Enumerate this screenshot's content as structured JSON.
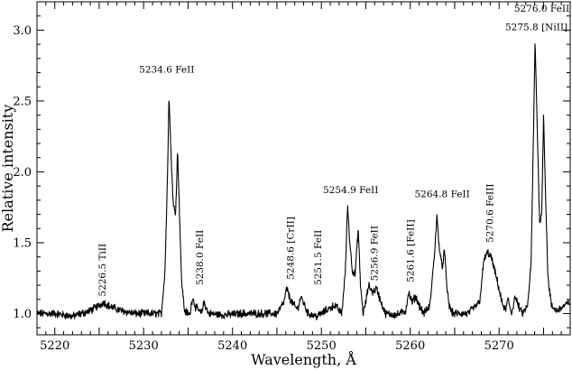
{
  "chart_data": {
    "type": "line",
    "xlabel": "Wavelength, Å",
    "ylabel": "Relative intensity",
    "xlim": [
      5218,
      5278
    ],
    "ylim": [
      0.85,
      3.2
    ],
    "grid": false,
    "legend": "none",
    "x_ticks": [
      5220,
      5230,
      5240,
      5250,
      5260,
      5270
    ],
    "y_ticks": [
      1.0,
      1.5,
      2.0,
      2.5,
      3.0
    ],
    "y_tick_labels": [
      "1.0",
      "1.5",
      "2.0",
      "2.5",
      "3.0"
    ],
    "baseline": 1.0,
    "series": [
      {
        "line_color": "#000000",
        "x": [
          5218.0,
          5220.0,
          5222.0,
          5224.0,
          5224.8,
          5225.5,
          5226.2,
          5227.5,
          5229.0,
          5231.0,
          5232.0,
          5232.4,
          5232.7,
          5232.85,
          5233.1,
          5233.35,
          5233.6,
          5233.82,
          5234.0,
          5234.25,
          5234.6,
          5235.2,
          5235.5,
          5235.8,
          5236.5,
          5236.8,
          5237.3,
          5239.0,
          5241.0,
          5243.0,
          5245.0,
          5245.8,
          5246.1,
          5246.5,
          5246.9,
          5247.3,
          5247.7,
          5248.5,
          5249.5,
          5250.5,
          5251.5,
          5252.3,
          5252.7,
          5252.95,
          5253.2,
          5253.5,
          5253.8,
          5254.15,
          5254.4,
          5254.7,
          5255.0,
          5255.3,
          5255.5,
          5255.8,
          5256.2,
          5256.6,
          5257.2,
          5258.5,
          5259.5,
          5259.8,
          5260.2,
          5260.6,
          5261.0,
          5261.5,
          5262.2,
          5262.7,
          5263.0,
          5263.3,
          5263.6,
          5263.85,
          5264.1,
          5264.4,
          5264.8,
          5265.5,
          5266.5,
          5267.8,
          5268.3,
          5268.7,
          5269.1,
          5269.5,
          5269.9,
          5270.3,
          5270.7,
          5271.0,
          5271.4,
          5271.8,
          5272.2,
          5272.6,
          5273.2,
          5273.6,
          5273.85,
          5274.05,
          5274.3,
          5274.55,
          5274.8,
          5275.0,
          5275.25,
          5275.5,
          5275.9,
          5276.5,
          5277.2,
          5278.0
        ],
        "y": [
          1.0,
          1.0,
          0.98,
          1.02,
          1.05,
          1.08,
          1.05,
          1.02,
          1.0,
          1.0,
          1.0,
          1.3,
          2.0,
          2.56,
          2.1,
          1.75,
          1.72,
          2.15,
          1.8,
          1.25,
          1.02,
          0.99,
          1.12,
          1.05,
          1.0,
          1.08,
          1.0,
          0.99,
          1.0,
          1.0,
          1.0,
          1.08,
          1.18,
          1.1,
          1.06,
          1.03,
          1.12,
          1.0,
          0.98,
          1.02,
          1.06,
          1.0,
          1.3,
          1.77,
          1.5,
          1.3,
          1.28,
          1.6,
          1.2,
          1.0,
          1.08,
          1.2,
          1.18,
          1.15,
          1.18,
          1.1,
          1.0,
          0.99,
          1.02,
          1.15,
          1.08,
          1.12,
          1.06,
          1.0,
          1.05,
          1.4,
          1.68,
          1.45,
          1.32,
          1.45,
          1.2,
          1.05,
          1.0,
          1.0,
          1.0,
          1.08,
          1.38,
          1.43,
          1.4,
          1.3,
          1.2,
          1.08,
          1.02,
          1.1,
          1.0,
          1.12,
          1.05,
          1.0,
          1.05,
          1.35,
          2.2,
          2.93,
          2.3,
          1.65,
          1.7,
          2.4,
          1.8,
          1.25,
          1.05,
          1.02,
          1.05,
          1.08
        ]
      }
    ],
    "annotations": [
      {
        "text": "5226.5 TiII",
        "x": 5225.7,
        "y": 1.12,
        "rotate": true
      },
      {
        "text": "5234.6 FeII",
        "x": 5232.6,
        "y": 2.7,
        "rotate": false
      },
      {
        "text": "5238.0 FeII",
        "x": 5236.7,
        "y": 1.2,
        "rotate": true
      },
      {
        "text": "5248.6 [CrII]",
        "x": 5246.9,
        "y": 1.24,
        "rotate": true
      },
      {
        "text": "5251.5 FeII",
        "x": 5250.0,
        "y": 1.2,
        "rotate": true
      },
      {
        "text": "5254.9 FeII",
        "x": 5253.3,
        "y": 1.85,
        "rotate": false
      },
      {
        "text": "5256.9 FeII",
        "x": 5256.3,
        "y": 1.23,
        "rotate": true
      },
      {
        "text": "5261.6 [FeII]",
        "x": 5260.4,
        "y": 1.22,
        "rotate": true
      },
      {
        "text": "5264.8 FeII",
        "x": 5263.6,
        "y": 1.82,
        "rotate": false
      },
      {
        "text": "5270.6 FeIII",
        "x": 5269.3,
        "y": 1.5,
        "rotate": true
      },
      {
        "text": "5276.0 FeII",
        "x": 5274.8,
        "y": 3.13,
        "rotate": false
      },
      {
        "text": "5275.8 [NiII]",
        "x": 5274.2,
        "y": 3.0,
        "rotate": false
      }
    ]
  }
}
